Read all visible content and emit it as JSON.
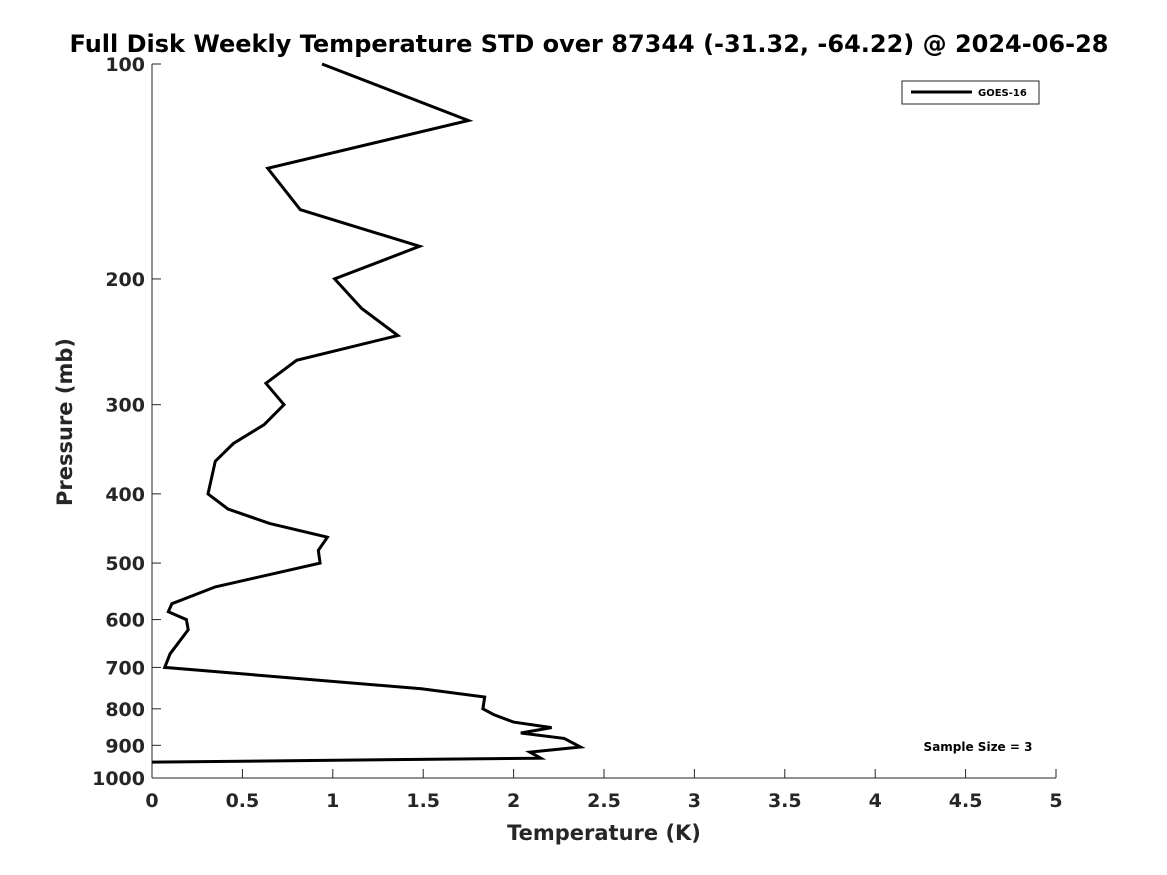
{
  "chart_data": {
    "type": "line",
    "title": "Full Disk Weekly Temperature STD over 87344 (-31.32, -64.22) @ 2024-06-28",
    "xlabel": "Temperature (K)",
    "ylabel": "Pressure (mb)",
    "xlim": [
      0,
      5
    ],
    "ylim": [
      100,
      1000
    ],
    "yscale": "log",
    "y_reversed": true,
    "x_ticks": [
      0,
      0.5,
      1,
      1.5,
      2,
      2.5,
      3,
      3.5,
      4,
      4.5,
      5
    ],
    "x_tick_labels": [
      "0",
      "0.5",
      "1",
      "1.5",
      "2",
      "2.5",
      "3",
      "3.5",
      "4",
      "4.5",
      "5"
    ],
    "y_ticks": [
      100,
      200,
      300,
      400,
      500,
      600,
      700,
      800,
      900,
      1000
    ],
    "y_tick_labels": [
      "100",
      "200",
      "300",
      "400",
      "500",
      "600",
      "700",
      "800",
      "900",
      "1000"
    ],
    "grid": false,
    "legend_position": "top-right",
    "series": [
      {
        "name": "GOES-16",
        "color": "#000000",
        "points": [
          [
            0.94,
            100
          ],
          [
            1.75,
            120
          ],
          [
            0.64,
            140
          ],
          [
            0.82,
            160
          ],
          [
            1.48,
            180
          ],
          [
            1.01,
            200
          ],
          [
            1.16,
            220
          ],
          [
            1.36,
            240
          ],
          [
            0.8,
            260
          ],
          [
            0.63,
            280
          ],
          [
            0.73,
            300
          ],
          [
            0.62,
            320
          ],
          [
            0.45,
            340
          ],
          [
            0.35,
            360
          ],
          [
            0.31,
            400
          ],
          [
            0.42,
            420
          ],
          [
            0.65,
            440
          ],
          [
            0.97,
            460
          ],
          [
            0.92,
            480
          ],
          [
            0.93,
            500
          ],
          [
            0.35,
            540
          ],
          [
            0.11,
            570
          ],
          [
            0.09,
            585
          ],
          [
            0.19,
            600
          ],
          [
            0.2,
            620
          ],
          [
            0.1,
            670
          ],
          [
            0.07,
            700
          ],
          [
            1.49,
            750
          ],
          [
            1.84,
            770
          ],
          [
            1.83,
            800
          ],
          [
            1.89,
            815
          ],
          [
            2.0,
            835
          ],
          [
            2.21,
            850
          ],
          [
            2.04,
            865
          ],
          [
            2.28,
            880
          ],
          [
            2.37,
            905
          ],
          [
            2.09,
            920
          ],
          [
            2.15,
            938
          ],
          [
            0.0,
            950
          ]
        ]
      }
    ],
    "annotations": [
      "Sample Size = 3"
    ]
  }
}
